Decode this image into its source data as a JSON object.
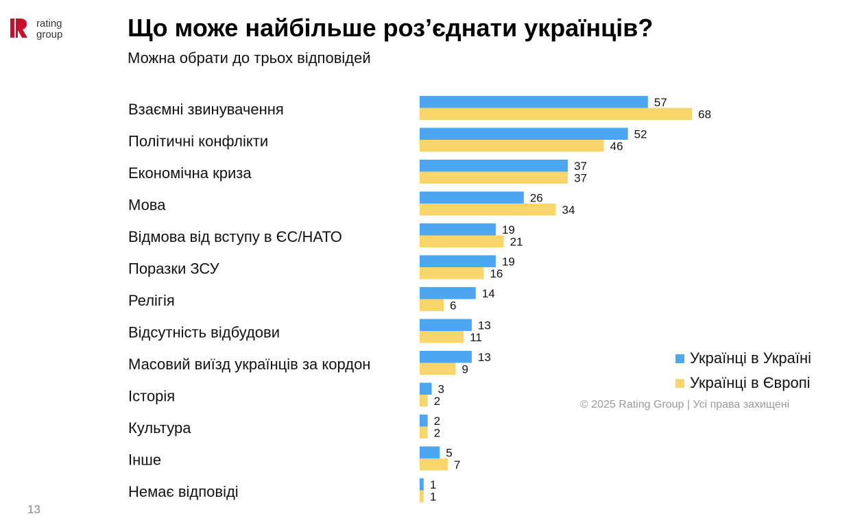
{
  "logo": {
    "text": "rating group"
  },
  "page_number": "13",
  "copyright": "© 2025 Rating Group | Усі права захищені",
  "chart_data": {
    "type": "bar",
    "orientation": "horizontal",
    "title": "Що може найбільше роз’єднати українців?",
    "subtitle": "Можна обрати до трьох відповідей",
    "categories": [
      "Взаємні звинувачення",
      "Політичні конфлікти",
      "Економічна криза",
      "Мова",
      "Відмова від вступу в ЄС/НАТО",
      "Поразки ЗСУ",
      "Релігія",
      "Відсутність відбудови",
      "Масовий виїзд українців за кордон",
      "Історія",
      "Культура",
      "Інше",
      "Немає відповіді"
    ],
    "series": [
      {
        "name": "Українці в Україні",
        "color": "#4da6f0",
        "values": [
          57,
          52,
          37,
          26,
          19,
          19,
          14,
          13,
          13,
          3,
          2,
          5,
          1
        ]
      },
      {
        "name": "Українці в Європі",
        "color": "#f8d66c",
        "values": [
          68,
          46,
          37,
          34,
          21,
          16,
          6,
          11,
          9,
          2,
          2,
          7,
          1
        ]
      }
    ],
    "legend_position": "right",
    "grid": false,
    "xlim": [
      0,
      70
    ]
  }
}
